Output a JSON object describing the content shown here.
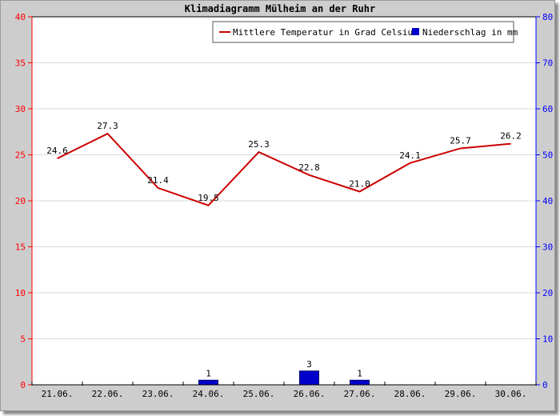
{
  "chart_data": {
    "type": "line",
    "title": "Klimadiagramm Mülheim an der Ruhr",
    "categories": [
      "21.06.",
      "22.06.",
      "23.06.",
      "24.06.",
      "25.06.",
      "26.06.",
      "27.06.",
      "28.06.",
      "29.06.",
      "30.06."
    ],
    "series": [
      {
        "name": "Mittlere Temperatur in Grad Celsius",
        "type": "line",
        "axis": "left",
        "color": "#cc0000",
        "values": [
          24.6,
          27.3,
          21.4,
          19.5,
          25.3,
          22.8,
          21.0,
          24.1,
          25.7,
          26.2
        ],
        "labels": [
          "24.6",
          "27.3",
          "21.4",
          "19.5",
          "25.3",
          "22.8",
          "21.0",
          "24.1",
          "25.7",
          "26.2"
        ]
      },
      {
        "name": "Niederschlag in mm",
        "type": "bar",
        "axis": "right",
        "color": "#0000cc",
        "values": [
          0,
          0,
          0,
          1,
          0,
          3,
          1,
          0,
          0,
          0
        ],
        "labels": [
          "",
          "",
          "",
          "1",
          "",
          "3",
          "1",
          "",
          "",
          ""
        ]
      }
    ],
    "y_left": {
      "min": 0,
      "max": 40,
      "ticks": [
        "0",
        "5",
        "10",
        "15",
        "20",
        "25",
        "30",
        "35",
        "40"
      ],
      "color": "#ff0000"
    },
    "y_right": {
      "min": 0,
      "max": 80,
      "ticks": [
        "0",
        "10",
        "20",
        "30",
        "40",
        "50",
        "60",
        "70",
        "80"
      ],
      "color": "#0000ff"
    },
    "grid": true,
    "legend": "top-right"
  }
}
